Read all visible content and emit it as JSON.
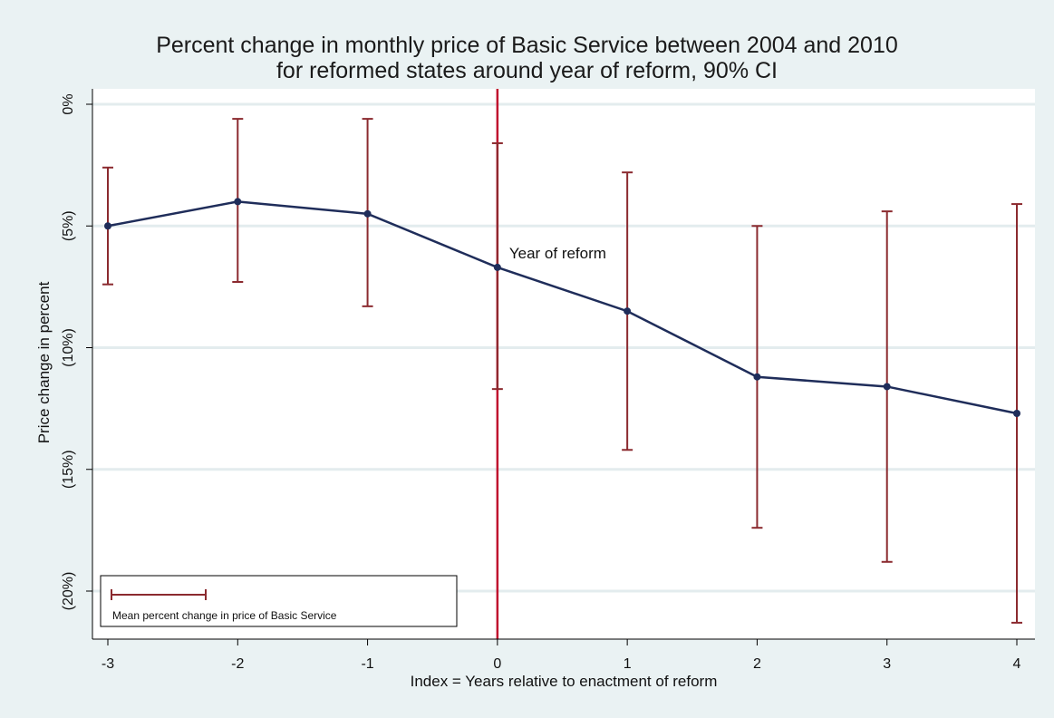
{
  "chart_data": {
    "type": "line",
    "title": "Percent change in monthly price of Basic Service between 2004 and 2010",
    "subtitle": "for reformed states around year of reform, 90% CI",
    "xlabel": "Index = Years relative to enactment of reform",
    "ylabel": "Price change in percent",
    "x": [
      -3,
      -2,
      -1,
      0,
      1,
      2,
      3,
      4
    ],
    "xlim": [
      -3,
      4
    ],
    "x_tick_labels": [
      "-3",
      "-2",
      "-1",
      "0",
      "1",
      "2",
      "3",
      "4"
    ],
    "ylim": [
      -21.5,
      0.7
    ],
    "y_ticks": [
      0,
      -5,
      -10,
      -15,
      -20
    ],
    "y_tick_labels": [
      "0%",
      "(5%)",
      "(10%)",
      "(15%)",
      "(20%)"
    ],
    "grid": true,
    "series": [
      {
        "name": "Mean percent change in price of Basic Service",
        "values": [
          -5.0,
          -4.0,
          -4.5,
          -6.7,
          -8.5,
          -11.2,
          -11.6,
          -12.7
        ],
        "ci_upper": [
          -2.6,
          -0.6,
          -0.6,
          -1.6,
          -2.8,
          -5.0,
          -4.4,
          -4.1
        ],
        "ci_lower": [
          -7.4,
          -7.3,
          -8.3,
          -11.7,
          -14.2,
          -17.4,
          -18.8,
          -21.3
        ],
        "line_color": "#1f2d5a",
        "ci_color": "#8b2a2f"
      }
    ],
    "reference_line": {
      "x": 0,
      "color": "#c0102e",
      "label": "Year of reform"
    },
    "legend": {
      "placement": "bottom-left",
      "label": "Mean percent change in price of Basic Service"
    }
  }
}
